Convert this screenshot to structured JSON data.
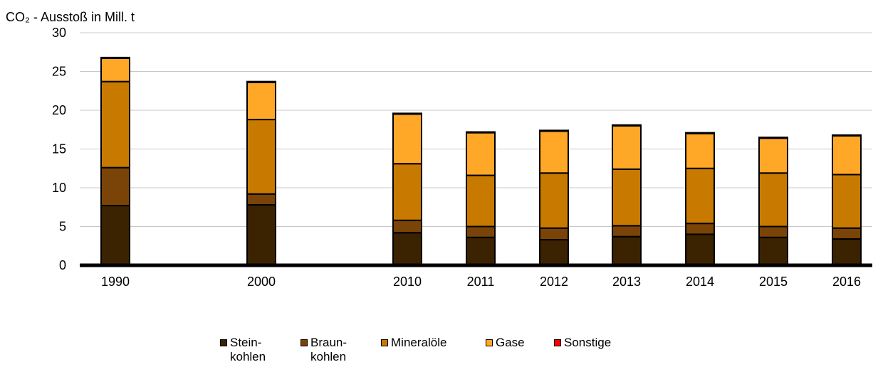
{
  "chart_data": {
    "type": "bar",
    "stacked": true,
    "ylabel": "CO₂ - Ausstoß in Mill. t",
    "ylim": [
      0,
      30
    ],
    "yticks": [
      0,
      5,
      10,
      15,
      20,
      25,
      30
    ],
    "grid": true,
    "legend_position": "bottom",
    "categories": [
      "1990",
      "2000",
      "2010",
      "2011",
      "2012",
      "2013",
      "2014",
      "2015",
      "2016"
    ],
    "series": [
      {
        "name": "Stein-\nkohlen",
        "color": "#3b2200",
        "values": [
          7.7,
          7.8,
          4.2,
          3.6,
          3.3,
          3.7,
          4.0,
          3.6,
          3.4
        ]
      },
      {
        "name": "Braun-\nkohlen",
        "color": "#7a4408",
        "values": [
          4.9,
          1.4,
          1.6,
          1.4,
          1.5,
          1.4,
          1.4,
          1.4,
          1.4
        ]
      },
      {
        "name": "Mineralöle",
        "color": "#c87a00",
        "values": [
          11.1,
          9.6,
          7.3,
          6.6,
          7.1,
          7.3,
          7.1,
          6.9,
          6.9
        ]
      },
      {
        "name": "Gase",
        "color": "#ffa726",
        "values": [
          3.0,
          4.8,
          6.4,
          5.5,
          5.4,
          5.6,
          4.5,
          4.5,
          5.0
        ]
      },
      {
        "name": "Sonstige",
        "color": "#ff0000",
        "values": [
          0.1,
          0.1,
          0.1,
          0.1,
          0.1,
          0.1,
          0.1,
          0.1,
          0.1
        ]
      }
    ]
  }
}
